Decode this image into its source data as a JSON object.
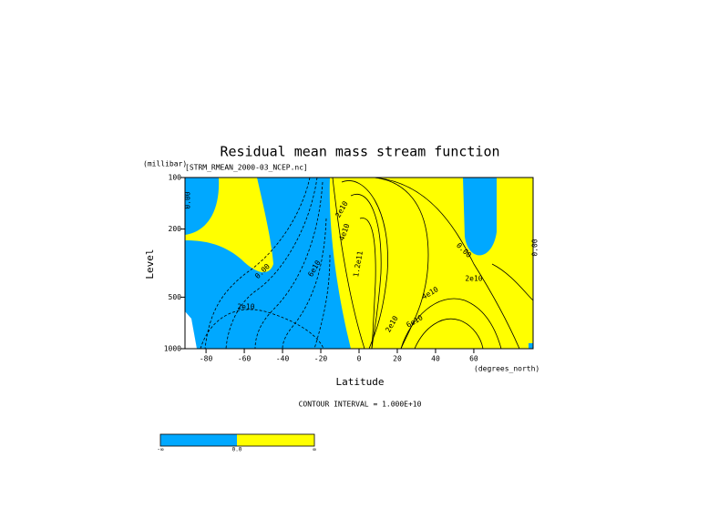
{
  "chart_data": {
    "type": "contour",
    "title": "Residual mean mass stream function",
    "subtitle": "[STRM_RMEAN_2000-03_NCEP.nc]",
    "x_label": "Latitude",
    "x_unit": "(degrees_north)",
    "y_label": "Level",
    "y_unit": "(millibar)",
    "xlim": [
      -91,
      91
    ],
    "xticks": [
      -80,
      -60,
      -40,
      -20,
      0,
      20,
      40,
      60
    ],
    "ylim": [
      1000,
      100
    ],
    "yticks": [
      100,
      200,
      500,
      1000
    ],
    "y_log": true,
    "contour_interval_text": "CONTOUR INTERVAL = 1.000E+10",
    "fill_colors": {
      "negative": "#00a8ff",
      "positive": "#ffff00"
    },
    "colorbar_labels": [
      "-∞",
      "0.0",
      "∞"
    ],
    "contour_labels": [
      "0.00",
      "0.00",
      "0.00",
      "0.00",
      "2e10",
      "6e10",
      "2e10",
      "4e10",
      "1.2e11",
      "2e10",
      "4e10",
      "6e10",
      "2e10"
    ]
  }
}
